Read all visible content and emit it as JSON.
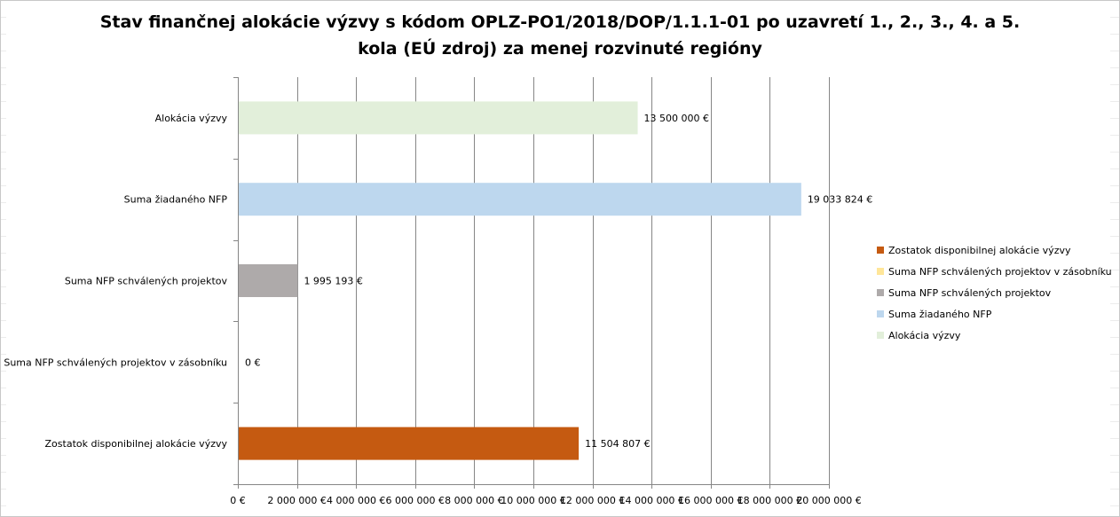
{
  "chart_data": {
    "type": "bar",
    "orientation": "horizontal",
    "title_lines": [
      "Stav finančnej alokácie výzvy s kódom OPLZ-PO1/2018/DOP/1.1.1-01 po uzavretí 1., 2., 3., 4. a 5.",
      "kola (EÚ zdroj) za menej rozvinuté regióny"
    ],
    "categories": [
      "Alokácia výzvy",
      "Suma žiadaného NFP",
      "Suma NFP schválených projektov",
      "Suma NFP schválených projektov v zásobníku",
      "Zostatok disponibilnej alokácie výzvy"
    ],
    "values": [
      13500000,
      19033824,
      1995193,
      0,
      11504807
    ],
    "data_labels": [
      "13 500 000 €",
      "19 033 824 €",
      "1 995 193 €",
      "0 €",
      "11 504 807 €"
    ],
    "colors": [
      "#e2efda",
      "#bdd7ee",
      "#aeaaaa",
      "#ffe699",
      "#c55a11"
    ],
    "xlim": [
      0,
      20000000
    ],
    "x_ticks": [
      0,
      2000000,
      4000000,
      6000000,
      8000000,
      10000000,
      12000000,
      14000000,
      16000000,
      18000000,
      20000000
    ],
    "x_tick_labels": [
      "0 €",
      "2 000 000 €",
      "4 000 000 €",
      "6 000 000 €",
      "8 000 000 €",
      "10 000 000 €",
      "12 000 000 €",
      "14 000 000 €",
      "16 000 000 €",
      "18 000 000 €",
      "20 000 000 €"
    ],
    "grid": "vertical",
    "legend_position": "right",
    "legend": [
      {
        "label": "Zostatok disponibilnej alokácie výzvy",
        "color": "#c55a11"
      },
      {
        "label": "Suma NFP schválených projektov v zásobníku",
        "color": "#ffe699"
      },
      {
        "label": "Suma NFP schválených projektov",
        "color": "#aeaaaa"
      },
      {
        "label": "Suma žiadaného NFP",
        "color": "#bdd7ee"
      },
      {
        "label": "Alokácia výzvy",
        "color": "#e2efda"
      }
    ]
  }
}
